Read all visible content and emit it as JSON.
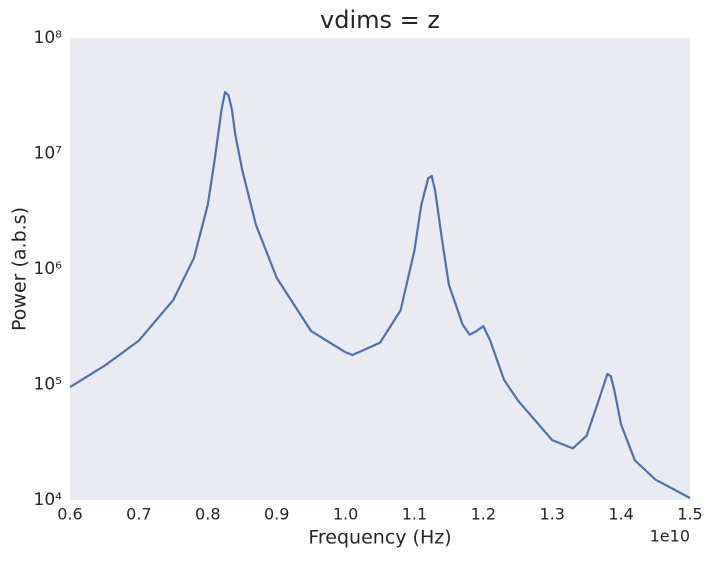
{
  "chart_data": {
    "type": "line",
    "title": "vdims = z",
    "x_label": "Frequency (Hz)",
    "y_label": "Power (a.b.s)",
    "x_offset_label": "1e10",
    "x": [
      0.6,
      0.65,
      0.7,
      0.75,
      0.78,
      0.8,
      0.81,
      0.82,
      0.825,
      0.83,
      0.835,
      0.84,
      0.85,
      0.87,
      0.9,
      0.95,
      1.0,
      1.01,
      1.05,
      1.08,
      1.1,
      1.11,
      1.12,
      1.125,
      1.13,
      1.14,
      1.15,
      1.17,
      1.18,
      1.19,
      1.2,
      1.21,
      1.23,
      1.25,
      1.3,
      1.33,
      1.35,
      1.37,
      1.38,
      1.385,
      1.39,
      1.4,
      1.42,
      1.45,
      1.5
    ],
    "series": [
      {
        "color": "#4c72b0",
        "values": [
          95000,
          145000,
          240000,
          540000,
          1250000,
          3600000,
          8800000,
          24000000,
          34000000,
          32000000,
          24000000,
          14500000,
          7200000,
          2400000,
          840000,
          290000,
          190000,
          180000,
          230000,
          440000,
          1450000,
          3600000,
          6100000,
          6400000,
          4800000,
          1800000,
          730000,
          330000,
          270000,
          290000,
          320000,
          240000,
          110000,
          73000,
          33000,
          28000,
          36000,
          81000,
          123000,
          118000,
          90000,
          45000,
          22000,
          15000,
          10400
        ]
      }
    ],
    "xlim": [
      0.6,
      1.5
    ],
    "xticks": [
      0.6,
      0.7,
      0.8,
      0.9,
      {
        "value": 1,
        "label": "1.0"
      },
      1.1,
      1.2,
      1.3,
      1.4,
      1.5
    ],
    "ylim": [
      10000,
      100000000
    ],
    "y_scale": "log",
    "yticks": [
      {
        "value": 10000,
        "label": "10⁴"
      },
      {
        "value": 100000,
        "label": "10⁵"
      },
      {
        "value": 1000000,
        "label": "10⁶"
      },
      {
        "value": 10000000,
        "label": "10⁷"
      },
      {
        "value": 100000000,
        "label": "10⁸"
      }
    ],
    "background": "#eaeaf2"
  }
}
